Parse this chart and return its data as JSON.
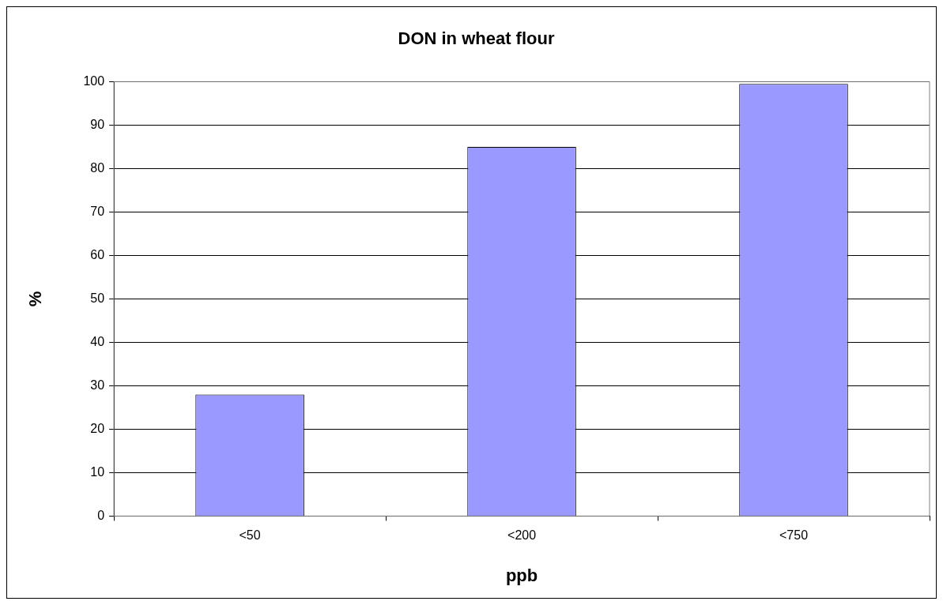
{
  "chart_data": {
    "type": "bar",
    "title": "DON in wheat flour",
    "xlabel": "ppb",
    "ylabel": "%",
    "categories": [
      "<50",
      "<200",
      "<750"
    ],
    "values": [
      28,
      85,
      99.5
    ],
    "color": "#9999ff",
    "ylim": [
      0,
      100
    ],
    "yticks": [
      0,
      10,
      20,
      30,
      40,
      50,
      60,
      70,
      80,
      90,
      100
    ],
    "grid": "y"
  }
}
